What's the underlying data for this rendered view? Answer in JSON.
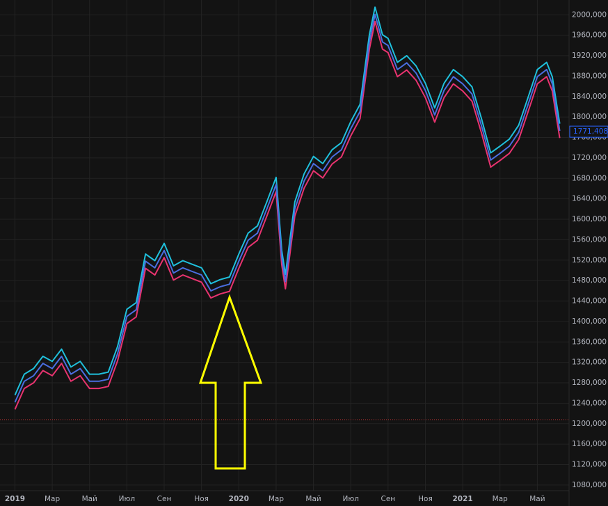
{
  "chart_data": {
    "type": "line",
    "x": [
      0,
      0.5,
      1,
      1.5,
      2,
      2.5,
      3,
      3.5,
      4,
      4.5,
      5,
      5.5,
      6,
      6.5,
      7,
      7.5,
      8,
      8.5,
      9,
      9.5,
      10,
      10.5,
      11,
      11.5,
      12,
      12.5,
      13,
      13.5,
      14,
      14.3,
      14.5,
      15,
      15.5,
      16,
      16.5,
      17,
      17.5,
      18,
      18.5,
      19,
      19.3,
      19.7,
      20,
      20.5,
      21,
      21.5,
      22,
      22.5,
      23,
      23.5,
      24,
      24.5,
      25,
      25.5,
      26,
      26.5,
      27,
      27.5,
      28,
      28.5,
      28.8,
      29.2
    ],
    "series": [
      {
        "color": "#1fc0dc",
        "values": [
          1256,
          1297,
          1308,
          1332,
          1322,
          1346,
          1311,
          1322,
          1297,
          1297,
          1301,
          1351,
          1424,
          1437,
          1532,
          1519,
          1553,
          1509,
          1519,
          1512,
          1505,
          1474,
          1482,
          1487,
          1532,
          1573,
          1587,
          1634,
          1682,
          1539,
          1492,
          1634,
          1689,
          1723,
          1709,
          1736,
          1750,
          1791,
          1825,
          1961,
          2015,
          1961,
          1954,
          1907,
          1920,
          1900,
          1866,
          1818,
          1866,
          1893,
          1879,
          1859,
          1798,
          1730,
          1743,
          1757,
          1784,
          1838,
          1893,
          1907,
          1879,
          1787
        ]
      },
      {
        "color": "#e8336f",
        "values": [
          1228,
          1269,
          1280,
          1304,
          1294,
          1318,
          1283,
          1294,
          1269,
          1269,
          1273,
          1323,
          1396,
          1409,
          1504,
          1491,
          1525,
          1481,
          1491,
          1484,
          1477,
          1446,
          1454,
          1459,
          1504,
          1545,
          1559,
          1606,
          1654,
          1511,
          1464,
          1606,
          1661,
          1695,
          1681,
          1708,
          1722,
          1763,
          1797,
          1933,
          1987,
          1933,
          1926,
          1879,
          1892,
          1872,
          1838,
          1790,
          1838,
          1865,
          1851,
          1831,
          1770,
          1702,
          1715,
          1729,
          1756,
          1810,
          1865,
          1879,
          1851,
          1759
        ]
      },
      {
        "color": "#4a6ee0",
        "values": [
          1242,
          1283,
          1294,
          1318,
          1308,
          1332,
          1297,
          1308,
          1283,
          1283,
          1287,
          1337,
          1410,
          1423,
          1518,
          1505,
          1539,
          1495,
          1505,
          1498,
          1491,
          1460,
          1468,
          1473,
          1518,
          1559,
          1573,
          1620,
          1668,
          1525,
          1478,
          1620,
          1675,
          1709,
          1695,
          1722,
          1736,
          1777,
          1811,
          1947,
          2001,
          1947,
          1940,
          1893,
          1906,
          1886,
          1852,
          1804,
          1852,
          1879,
          1865,
          1845,
          1784,
          1716,
          1729,
          1743,
          1770,
          1824,
          1879,
          1893,
          1865,
          1773
        ]
      }
    ],
    "xlim": [
      -0.8,
      29.7
    ],
    "xticks": [
      {
        "value": 0,
        "label": "2019"
      },
      {
        "value": 2,
        "label": "Мар"
      },
      {
        "value": 4,
        "label": "Май"
      },
      {
        "value": 6,
        "label": "Июл"
      },
      {
        "value": 8,
        "label": "Сен"
      },
      {
        "value": 10,
        "label": "Ноя"
      },
      {
        "value": 12,
        "label": "2020"
      },
      {
        "value": 14,
        "label": "Мар"
      },
      {
        "value": 16,
        "label": "Май"
      },
      {
        "value": 18,
        "label": "Июл"
      },
      {
        "value": 20,
        "label": "Сен"
      },
      {
        "value": 22,
        "label": "Ноя"
      },
      {
        "value": 24,
        "label": "2021"
      },
      {
        "value": 26,
        "label": "Мар"
      },
      {
        "value": 28,
        "label": "Май"
      }
    ],
    "ylim": [
      1069,
      2029
    ],
    "yticks": [
      {
        "value": 1080,
        "label": "1080,000"
      },
      {
        "value": 1120,
        "label": "1120,000"
      },
      {
        "value": 1160,
        "label": "1160,000"
      },
      {
        "value": 1200,
        "label": "1200,000"
      },
      {
        "value": 1240,
        "label": "1240,000"
      },
      {
        "value": 1280,
        "label": "1280,000"
      },
      {
        "value": 1320,
        "label": "1320,000"
      },
      {
        "value": 1360,
        "label": "1360,000"
      },
      {
        "value": 1400,
        "label": "1400,000"
      },
      {
        "value": 1440,
        "label": "1440,000"
      },
      {
        "value": 1480,
        "label": "1480,000"
      },
      {
        "value": 1520,
        "label": "1520,000"
      },
      {
        "value": 1560,
        "label": "1560,000"
      },
      {
        "value": 1600,
        "label": "1600,000"
      },
      {
        "value": 1640,
        "label": "1640,000"
      },
      {
        "value": 1680,
        "label": "1680,000"
      },
      {
        "value": 1720,
        "label": "1720,000"
      },
      {
        "value": 1760,
        "label": "1760,000"
      },
      {
        "value": 1800,
        "label": "1800,000"
      },
      {
        "value": 1840,
        "label": "1840,000"
      },
      {
        "value": 1880,
        "label": "1880,000"
      },
      {
        "value": 1920,
        "label": "1920,000"
      },
      {
        "value": 1960,
        "label": "1960,000"
      },
      {
        "value": 2000,
        "label": "2000,000"
      }
    ],
    "grid": true,
    "hline": {
      "value": 1208,
      "color": "#b03030"
    },
    "last_price": {
      "value": 1771.408,
      "label": "1771,408",
      "color": "#2962ff"
    }
  }
}
